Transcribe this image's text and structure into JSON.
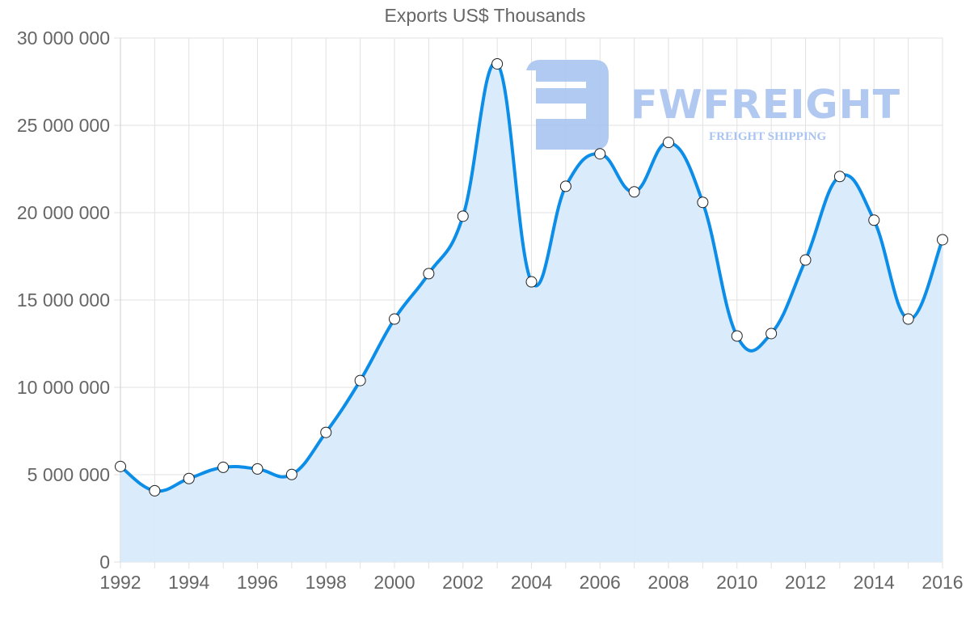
{
  "chart": {
    "title": "Exports US$ Thousands"
  },
  "watermark": {
    "brand": "FWFREIGHT",
    "tagline": "FREIGHT SHIPPING"
  },
  "colors": {
    "line": "#0c8ee8",
    "fill": "#d8ebfc",
    "grid": "#e1e1e1",
    "axis_text": "#666666",
    "point_fill": "#ffffff",
    "point_stroke": "#222222",
    "watermark": "#a9c4f0"
  },
  "chart_data": {
    "type": "area",
    "title": "Exports US$ Thousands",
    "xlabel": "",
    "ylabel": "",
    "x": [
      1992,
      1993,
      1994,
      1995,
      1996,
      1997,
      1998,
      1999,
      2000,
      2001,
      2002,
      2003,
      2004,
      2005,
      2006,
      2007,
      2008,
      2009,
      2010,
      2011,
      2012,
      2013,
      2014,
      2015,
      2016
    ],
    "series": [
      {
        "name": "Exports US$ Thousands",
        "values": [
          5470000,
          4080000,
          4780000,
          5420000,
          5330000,
          5010000,
          7420000,
          10390000,
          13910000,
          16510000,
          19800000,
          28520000,
          16040000,
          21510000,
          23370000,
          21190000,
          24020000,
          20590000,
          12940000,
          13080000,
          17290000,
          22070000,
          19570000,
          13910000,
          18450000
        ]
      }
    ],
    "ylim": [
      0,
      30000000
    ],
    "yticks": [
      0,
      5000000,
      10000000,
      15000000,
      20000000,
      25000000,
      30000000
    ],
    "ytick_labels": [
      "0",
      "5 000 000",
      "10 000 000",
      "15 000 000",
      "20 000 000",
      "25 000 000",
      "30 000 000"
    ],
    "xtick_labels": [
      "1992",
      "1994",
      "1996",
      "1998",
      "2000",
      "2002",
      "2004",
      "2006",
      "2008",
      "2010",
      "2012",
      "2014",
      "2016"
    ],
    "grid": true,
    "legend": "none"
  }
}
